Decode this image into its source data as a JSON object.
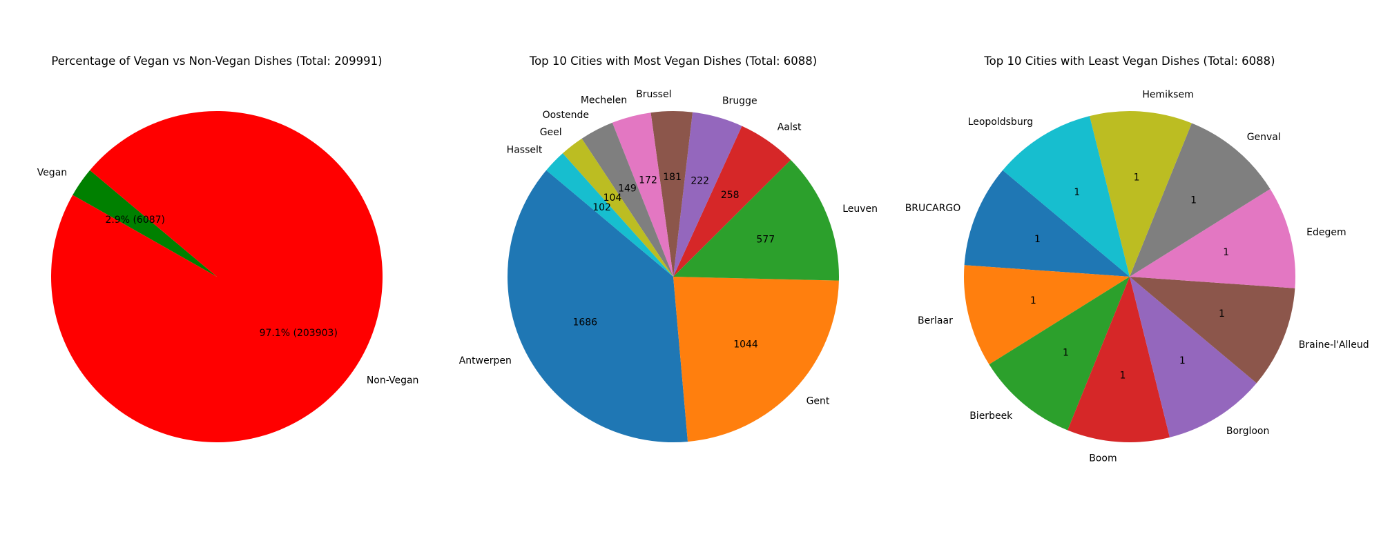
{
  "chart_data": [
    {
      "type": "pie",
      "title": "Percentage of Vegan vs Non-Vegan Dishes (Total: 209991)",
      "labels": [
        "Vegan",
        "Non-Vegan"
      ],
      "values": [
        6087,
        203903
      ],
      "value_labels": [
        "2.9% (6087)",
        "97.1% (203903)"
      ],
      "colors": [
        "#008000",
        "#ff0000"
      ],
      "start_angle_deg": 140,
      "legend": "none"
    },
    {
      "type": "pie",
      "title": "Top 10 Cities with Most Vegan Dishes (Total: 6088)",
      "labels": [
        "Antwerpen",
        "Gent",
        "Leuven",
        "Aalst",
        "Brugge",
        "Brussel",
        "Mechelen",
        "Oostende",
        "Geel",
        "Hasselt"
      ],
      "values": [
        1686,
        1044,
        577,
        258,
        222,
        181,
        172,
        149,
        104,
        102
      ],
      "value_labels": [
        "1686",
        "1044",
        "577",
        "258",
        "222",
        "181",
        "172",
        "149",
        "104",
        "102"
      ],
      "colors": [
        "#1f77b4",
        "#ff7f0e",
        "#2ca02c",
        "#d62728",
        "#9467bd",
        "#8c564b",
        "#e377c2",
        "#7f7f7f",
        "#bcbd22",
        "#17becf"
      ],
      "start_angle_deg": 140,
      "legend": "none"
    },
    {
      "type": "pie",
      "title": "Top 10 Cities with Least Vegan Dishes (Total: 6088)",
      "labels": [
        "BRUCARGO",
        "Berlaar",
        "Bierbeek",
        "Boom",
        "Borgloon",
        "Braine-l'Alleud",
        "Edegem",
        "Genval",
        "Hemiksem",
        "Leopoldsburg"
      ],
      "values": [
        1,
        1,
        1,
        1,
        1,
        1,
        1,
        1,
        1,
        1
      ],
      "value_labels": [
        "1",
        "1",
        "1",
        "1",
        "1",
        "1",
        "1",
        "1",
        "1",
        "1"
      ],
      "colors": [
        "#1f77b4",
        "#ff7f0e",
        "#2ca02c",
        "#d62728",
        "#9467bd",
        "#8c564b",
        "#e377c2",
        "#7f7f7f",
        "#bcbd22",
        "#17becf"
      ],
      "start_angle_deg": 140,
      "legend": "none"
    }
  ]
}
